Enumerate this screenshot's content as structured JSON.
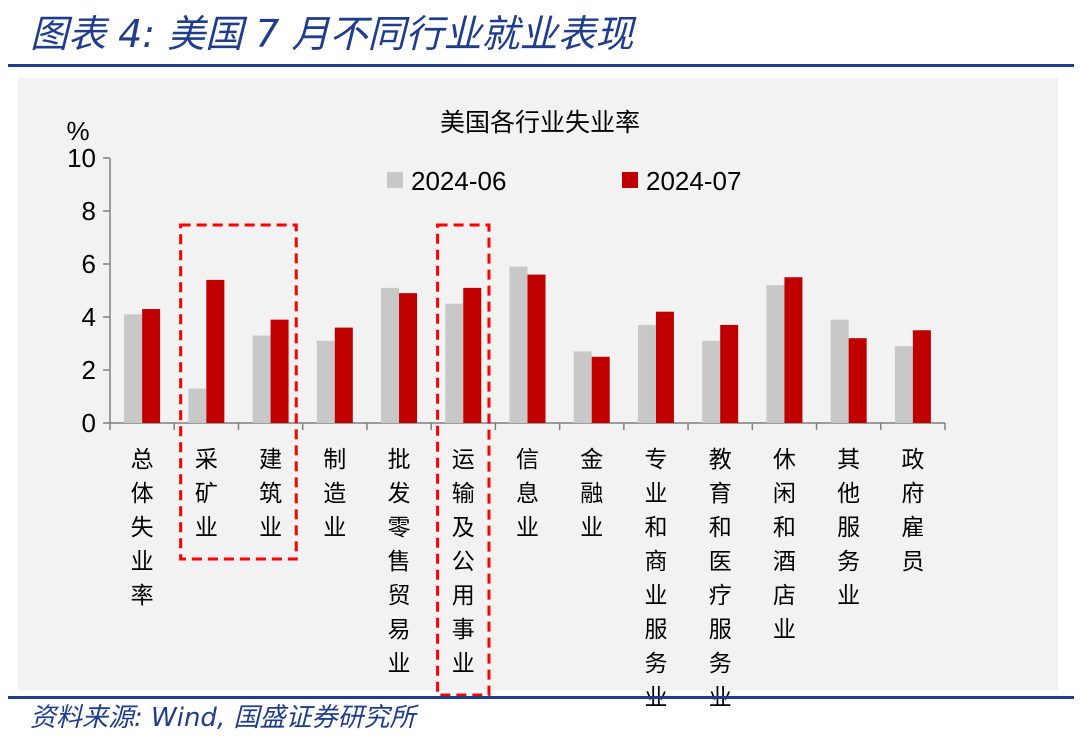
{
  "header": {
    "figure_title": "图表 4:  美国 7 月不同行业就业表现"
  },
  "footer": {
    "source": "资料来源:  Wind,  国盛证券研究所"
  },
  "colors": {
    "series_2024_06": "#c8c8c8",
    "series_2024_07": "#c00000",
    "highlight_box": "#ff0000",
    "brand_blue": "#1f3d8c"
  },
  "chart_data": {
    "type": "bar",
    "title": "美国各行业失业率",
    "ylabel": "%",
    "xlabel": "",
    "ylim": [
      0,
      10
    ],
    "yticks": [
      "0",
      "2",
      "4",
      "6",
      "8",
      "10"
    ],
    "grid": false,
    "legend_position": "top",
    "categories": [
      "总体失业率",
      "采矿业",
      "建筑业",
      "制造业",
      "批发零售贸易业",
      "运输及公用事业",
      "信息业",
      "金融业",
      "专业和商业服务业",
      "教育和医疗服务业",
      "休闲和酒店业",
      "其他服务业",
      "政府雇员"
    ],
    "series": [
      {
        "name": "2024-06",
        "values": [
          4.1,
          1.3,
          3.3,
          3.1,
          5.1,
          4.5,
          5.9,
          2.7,
          3.7,
          3.1,
          5.2,
          3.9,
          2.9
        ]
      },
      {
        "name": "2024-07",
        "values": [
          4.3,
          5.4,
          3.9,
          3.6,
          4.9,
          5.1,
          5.6,
          2.5,
          4.2,
          3.7,
          5.5,
          3.2,
          3.5
        ]
      }
    ],
    "highlighted_categories": [
      "采矿业",
      "建筑业",
      "运输及公用事业"
    ]
  }
}
